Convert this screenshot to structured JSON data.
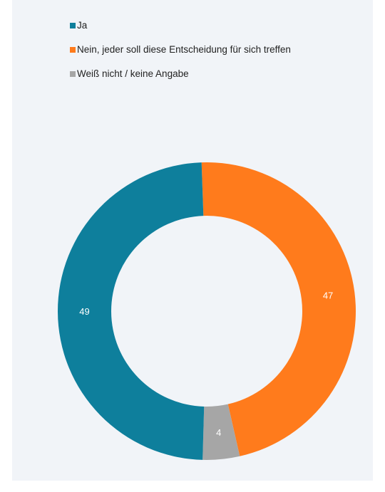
{
  "chart_data": {
    "type": "pie",
    "donut": true,
    "categories": [
      "Ja",
      "Nein, jeder soll diese Entscheidung für sich treffen",
      "Weiß nicht / keine Angabe"
    ],
    "values": [
      49,
      47,
      4
    ],
    "colors": [
      "#0e7f9c",
      "#ff7b1c",
      "#a6a6a6"
    ],
    "legend_position": "top-left",
    "data_labels": true
  }
}
